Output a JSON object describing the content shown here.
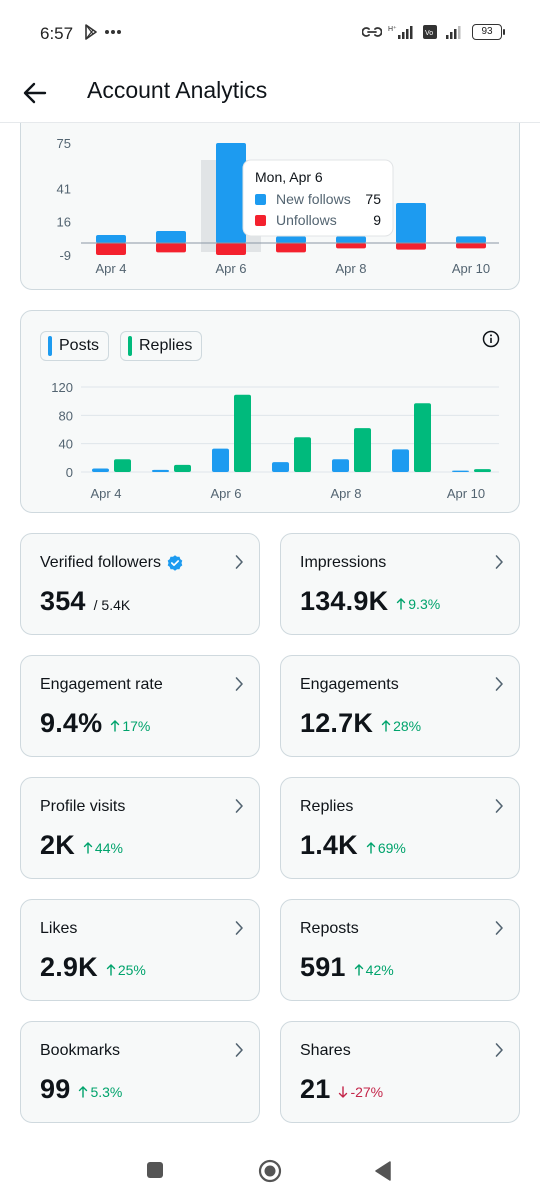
{
  "status_bar": {
    "time": "6:57",
    "battery": "93",
    "icons": [
      "play-store-icon",
      "more-dots-icon",
      "hotspot-icon",
      "signal-icon",
      "volte-icon",
      "signal-icon-2",
      "battery-icon"
    ]
  },
  "header": {
    "title": "Account Analytics",
    "back_icon": "arrow-left-icon"
  },
  "follows_chart": {
    "chart_data": {
      "type": "bar",
      "categories": [
        "Apr 4",
        "Apr 5",
        "Apr 6",
        "Apr 7",
        "Apr 8",
        "Apr 9",
        "Apr 10"
      ],
      "x_tick_labels": [
        "Apr 4",
        "Apr 6",
        "Apr 8",
        "Apr 10"
      ],
      "y_ticks": [
        75,
        41,
        16,
        -9
      ],
      "ylim": [
        -9,
        75
      ],
      "series": [
        {
          "name": "New follows",
          "color": "#1d9bf0",
          "values": [
            6,
            9,
            75,
            5,
            5,
            30,
            5
          ]
        },
        {
          "name": "Unfollows",
          "color": "#f4212e",
          "values": [
            9,
            7,
            9,
            7,
            4,
            5,
            4
          ]
        }
      ],
      "highlight_index": 2
    },
    "tooltip": {
      "title": "Mon, Apr 6",
      "rows": [
        {
          "label": "New follows",
          "value": "75",
          "color": "#1d9bf0"
        },
        {
          "label": "Unfollows",
          "value": "9",
          "color": "#f4212e"
        }
      ]
    }
  },
  "posts_chart": {
    "legend": [
      {
        "label": "Posts",
        "color": "#1d9bf0"
      },
      {
        "label": "Replies",
        "color": "#00ba7c"
      }
    ],
    "info_icon": "info-icon",
    "chart_data": {
      "type": "bar",
      "categories": [
        "Apr 4",
        "Apr 5",
        "Apr 6",
        "Apr 7",
        "Apr 8",
        "Apr 9",
        "Apr 10"
      ],
      "x_tick_labels": [
        "Apr 4",
        "Apr 6",
        "Apr 8",
        "Apr 10"
      ],
      "y_ticks": [
        120,
        80,
        40,
        0
      ],
      "ylim": [
        0,
        120
      ],
      "series": [
        {
          "name": "Posts",
          "color": "#1d9bf0",
          "values": [
            5,
            3,
            33,
            14,
            18,
            32,
            2
          ]
        },
        {
          "name": "Replies",
          "color": "#00ba7c",
          "values": [
            18,
            10,
            109,
            49,
            62,
            97,
            4
          ]
        }
      ]
    }
  },
  "stats": [
    {
      "label": "Verified followers",
      "value": "354",
      "sub": "/ 5.4K",
      "verified": true
    },
    {
      "label": "Impressions",
      "value": "134.9K",
      "delta": "9.3%",
      "dir": "up"
    },
    {
      "label": "Engagement rate",
      "value": "9.4%",
      "delta": "17%",
      "dir": "up"
    },
    {
      "label": "Engagements",
      "value": "12.7K",
      "delta": "28%",
      "dir": "up"
    },
    {
      "label": "Profile visits",
      "value": "2K",
      "delta": "44%",
      "dir": "up"
    },
    {
      "label": "Replies",
      "value": "1.4K",
      "delta": "69%",
      "dir": "up"
    },
    {
      "label": "Likes",
      "value": "2.9K",
      "delta": "25%",
      "dir": "up"
    },
    {
      "label": "Reposts",
      "value": "591",
      "delta": "42%",
      "dir": "up"
    },
    {
      "label": "Bookmarks",
      "value": "99",
      "delta": "5.3%",
      "dir": "up"
    },
    {
      "label": "Shares",
      "value": "21",
      "delta": "-27%",
      "dir": "down"
    }
  ],
  "nav_bar": {
    "icons": [
      "recents-square-icon",
      "home-circle-icon",
      "back-triangle-icon"
    ]
  },
  "colors": {
    "accent_blue": "#1d9bf0",
    "unfollow_red": "#f4212e",
    "reply_green": "#00ba7c",
    "delta_up": "#00a36c",
    "delta_down": "#c4264a"
  }
}
